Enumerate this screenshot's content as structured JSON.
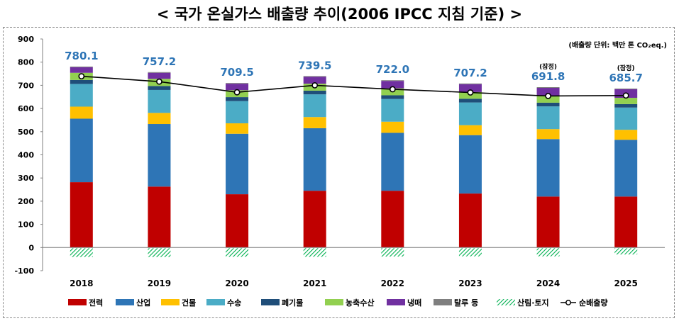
{
  "title": "< 국가 온실가스 배출량 추이(2006 IPCC 지침 기준) >",
  "unit_note": "(배출량 단위: 백만 톤 CO₂eq.)",
  "colors": {
    "전력": "#c00000",
    "산업": "#2e75b6",
    "건물": "#ffc000",
    "수송": "#4bacc6",
    "폐기물": "#1f4e79",
    "농축수산": "#92d050",
    "냉매": "#7030a0",
    "탈루 등": "#7f7f7f",
    "산림·토지": "#00b050",
    "net_line": "#000000",
    "total_label": "#2e75b6"
  },
  "chart_data": {
    "type": "bar",
    "stacked": true,
    "categories": [
      "2018",
      "2019",
      "2020",
      "2021",
      "2022",
      "2023",
      "2024",
      "2025"
    ],
    "series": [
      {
        "name": "전력",
        "values": [
          282,
          263,
          230,
          245,
          245,
          233,
          220,
          220
        ]
      },
      {
        "name": "산업",
        "values": [
          274,
          270,
          261,
          270,
          250,
          252,
          248,
          245
        ]
      },
      {
        "name": "건물",
        "values": [
          52,
          48,
          45,
          48,
          48,
          43,
          43,
          43
        ]
      },
      {
        "name": "수송",
        "values": [
          98,
          99,
          96,
          98,
          98,
          98,
          98,
          96
        ]
      },
      {
        "name": "폐기물",
        "values": [
          17,
          17,
          17,
          16,
          16,
          16,
          16,
          15
        ]
      },
      {
        "name": "농축수산",
        "values": [
          31,
          31,
          30,
          30,
          30,
          29,
          28,
          27
        ]
      },
      {
        "name": "냉매",
        "values": [
          24,
          26,
          28,
          30,
          32,
          34,
          36,
          37
        ]
      },
      {
        "name": "탈루 등",
        "values": [
          3,
          3,
          3,
          3,
          3,
          3,
          3,
          3
        ]
      },
      {
        "name": "산림·토지",
        "values": [
          -41,
          -41,
          -40,
          -40,
          -39,
          -38,
          -38,
          -30
        ]
      }
    ],
    "line": {
      "name": "순배출량",
      "values": [
        739,
        716,
        670,
        700,
        683,
        669,
        654,
        656
      ]
    },
    "totals": [
      "780.1",
      "757.2",
      "709.5",
      "739.5",
      "722.0",
      "707.2",
      "691.8",
      "685.7"
    ],
    "provisional_note": "(잠정)",
    "provisional_years": [
      "2024",
      "2025"
    ],
    "ylim": [
      -100,
      900
    ],
    "yticks": [
      -100,
      0,
      100,
      200,
      300,
      400,
      500,
      600,
      700,
      800,
      900
    ],
    "grid": false,
    "legend_position": "bottom",
    "legend": [
      "전력",
      "산업",
      "건물",
      "수송",
      "폐기물",
      "농축수산",
      "냉매",
      "탈루 등",
      "산림·토지",
      "순배출량"
    ]
  }
}
